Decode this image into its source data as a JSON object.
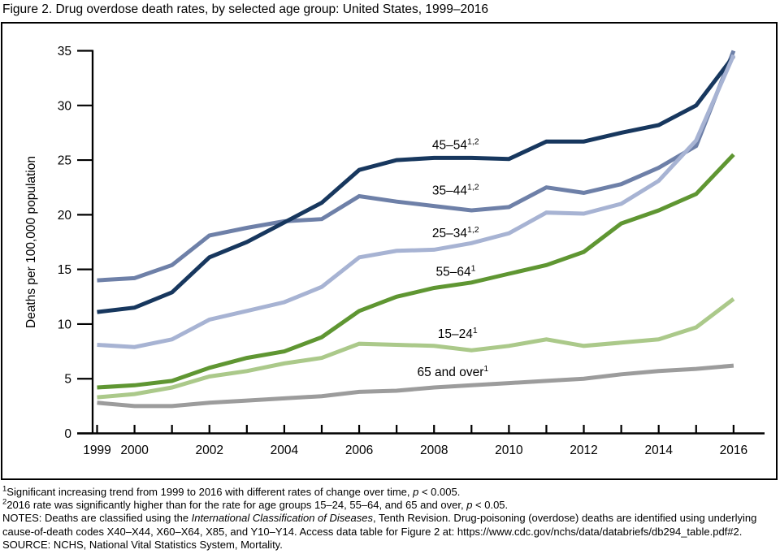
{
  "chart_data": {
    "type": "line",
    "title": "Figure 2. Drug overdose death rates, by selected age group: United States, 1999–2016",
    "xlabel": "",
    "ylabel": "Deaths per 100,000 population",
    "ylim": [
      0,
      35
    ],
    "yticks": [
      0,
      5,
      10,
      15,
      20,
      25,
      30,
      35
    ],
    "grid": false,
    "legend_position": "inline-line-labels",
    "x": [
      1999,
      2000,
      2001,
      2002,
      2003,
      2004,
      2005,
      2006,
      2007,
      2008,
      2009,
      2010,
      2011,
      2012,
      2013,
      2014,
      2015,
      2016
    ],
    "xtick_labeled": [
      "1999",
      "2000",
      "2002",
      "2004",
      "2006",
      "2008",
      "2010",
      "2012",
      "2014",
      "2016"
    ],
    "draw_order": [
      "65 and over",
      "15–24",
      "55–64",
      "35–44",
      "45–54",
      "25–34"
    ],
    "series": [
      {
        "name": "45–54",
        "superscript": "1,2",
        "color": "#17375E",
        "values": [
          11.1,
          11.5,
          12.9,
          16.1,
          17.5,
          19.3,
          21.1,
          24.1,
          25.0,
          25.2,
          25.2,
          25.1,
          26.7,
          26.7,
          27.5,
          28.2,
          30.0,
          34.5
        ],
        "label_anchor": {
          "year": 2007.95,
          "value": 26.0
        }
      },
      {
        "name": "35–44",
        "superscript": "1,2",
        "color": "#6E80A8",
        "values": [
          14.0,
          14.2,
          15.4,
          18.1,
          18.8,
          19.4,
          19.6,
          21.7,
          21.2,
          20.8,
          20.4,
          20.7,
          22.5,
          22.0,
          22.8,
          24.3,
          26.3,
          35.0
        ],
        "label_anchor": {
          "year": 2007.95,
          "value": 21.85
        }
      },
      {
        "name": "25–34",
        "superscript": "1,2",
        "color": "#A7B3D3",
        "values": [
          8.1,
          7.9,
          8.6,
          10.4,
          11.2,
          12.0,
          13.4,
          16.1,
          16.7,
          16.8,
          17.4,
          18.3,
          20.2,
          20.1,
          21.0,
          23.1,
          26.8,
          34.6
        ],
        "label_anchor": {
          "year": 2007.95,
          "value": 17.95
        }
      },
      {
        "name": "55–64",
        "superscript": "1",
        "color": "#5F9632",
        "values": [
          4.2,
          4.4,
          4.8,
          6.0,
          6.9,
          7.5,
          8.8,
          11.2,
          12.5,
          13.3,
          13.8,
          14.6,
          15.4,
          16.6,
          19.2,
          20.4,
          21.9,
          25.5
        ],
        "label_anchor": {
          "year": 2008.05,
          "value": 14.4
        }
      },
      {
        "name": "15–24",
        "superscript": "1",
        "color": "#ABC98A",
        "values": [
          3.3,
          3.6,
          4.2,
          5.2,
          5.7,
          6.4,
          6.9,
          8.2,
          8.1,
          8.0,
          7.6,
          8.0,
          8.6,
          8.0,
          8.3,
          8.6,
          9.7,
          12.3
        ],
        "label_anchor": {
          "year": 2008.1,
          "value": 8.75
        }
      },
      {
        "name": "65 and over",
        "superscript": "1",
        "color": "#9C9C9C",
        "values": [
          2.8,
          2.5,
          2.5,
          2.8,
          3.0,
          3.2,
          3.4,
          3.8,
          3.9,
          4.2,
          4.4,
          4.6,
          4.8,
          5.0,
          5.4,
          5.7,
          5.9,
          6.2
        ],
        "label_anchor": {
          "year": 2007.55,
          "value": 5.25
        }
      }
    ]
  },
  "footnotes": [
    [
      {
        "sup": "1"
      },
      {
        "text": "Significant increasing trend from 1999 to 2016 with different rates of change over time, "
      },
      {
        "text": "p",
        "italic": true
      },
      {
        "text": " < 0.005."
      }
    ],
    [
      {
        "sup": "2"
      },
      {
        "text": "2016 rate was significantly higher than for the rate for age groups 15–24, 55–64, and 65 and over, "
      },
      {
        "text": "p",
        "italic": true
      },
      {
        "text": " < 0.05."
      }
    ],
    [
      {
        "text": "NOTES: Deaths are classified using the "
      },
      {
        "text": "International Classification of Diseases",
        "italic": true
      },
      {
        "text": ", Tenth Revision. Drug-poisoning (overdose) deaths are identified using underlying"
      }
    ],
    [
      {
        "text": "cause-of-death codes X40–X44, X60–X64, X85, and Y10–Y14. Access data table for Figure 2 at: https://www.cdc.gov/nchs/data/databriefs/db294_table.pdf#2."
      }
    ],
    [
      {
        "text": "SOURCE: NCHS, National Vital Statistics System, Mortality."
      }
    ]
  ]
}
